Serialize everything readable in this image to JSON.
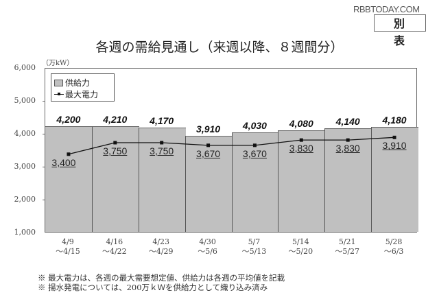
{
  "watermark": "RBBTODAY.COM",
  "badge": "別 表",
  "title": "各週の需給見通し（来週以降、８週間分）",
  "unit": "（万kW）",
  "legend": {
    "supply": "供給力",
    "demand": "最大電力"
  },
  "y_ticks": [
    "6,000",
    "5,000",
    "4,000",
    "3,000",
    "2,000",
    "1,000"
  ],
  "notes": [
    "※ 最大電力は、各週の最大需要想定値、供給力は各週の平均値を記載",
    "※ 揚水発電については、200万ｋＷを供給力として織り込み済み"
  ],
  "chart_data": {
    "type": "bar",
    "title": "各週の需給見通し（来週以降、８週間分）",
    "ylabel": "万kW",
    "ylim": [
      1000,
      6000
    ],
    "yticks": [
      1000,
      2000,
      3000,
      4000,
      5000,
      6000
    ],
    "grid": false,
    "legend_position": "upper-left",
    "categories": [
      "4/9～4/15",
      "4/16～4/22",
      "4/23～4/29",
      "4/30～5/6",
      "5/7～5/13",
      "5/14～5/20",
      "5/21～5/27",
      "5/28～6/3"
    ],
    "category_lines": [
      [
        "4/9",
        "～4/15"
      ],
      [
        "4/16",
        "～4/22"
      ],
      [
        "4/23",
        "～4/29"
      ],
      [
        "4/30",
        "～5/6"
      ],
      [
        "5/7",
        "～5/13"
      ],
      [
        "5/14",
        "～5/20"
      ],
      [
        "5/21",
        "～5/27"
      ],
      [
        "5/28",
        "～6/3"
      ]
    ],
    "series": [
      {
        "name": "供給力",
        "type": "bar",
        "color": "#c0c0c0",
        "values": [
          4200,
          4210,
          4170,
          3910,
          4030,
          4080,
          4140,
          4180
        ],
        "labels": [
          "4,200",
          "4,210",
          "4,170",
          "3,910",
          "4,030",
          "4,080",
          "4,140",
          "4,180"
        ]
      },
      {
        "name": "最大電力",
        "type": "line",
        "color": "#111111",
        "values": [
          3400,
          3750,
          3750,
          3670,
          3670,
          3830,
          3830,
          3910
        ],
        "labels": [
          "3,400",
          "3,750",
          "3,750",
          "3,670",
          "3,670",
          "3,830",
          "3,830",
          "3,910"
        ]
      }
    ]
  }
}
